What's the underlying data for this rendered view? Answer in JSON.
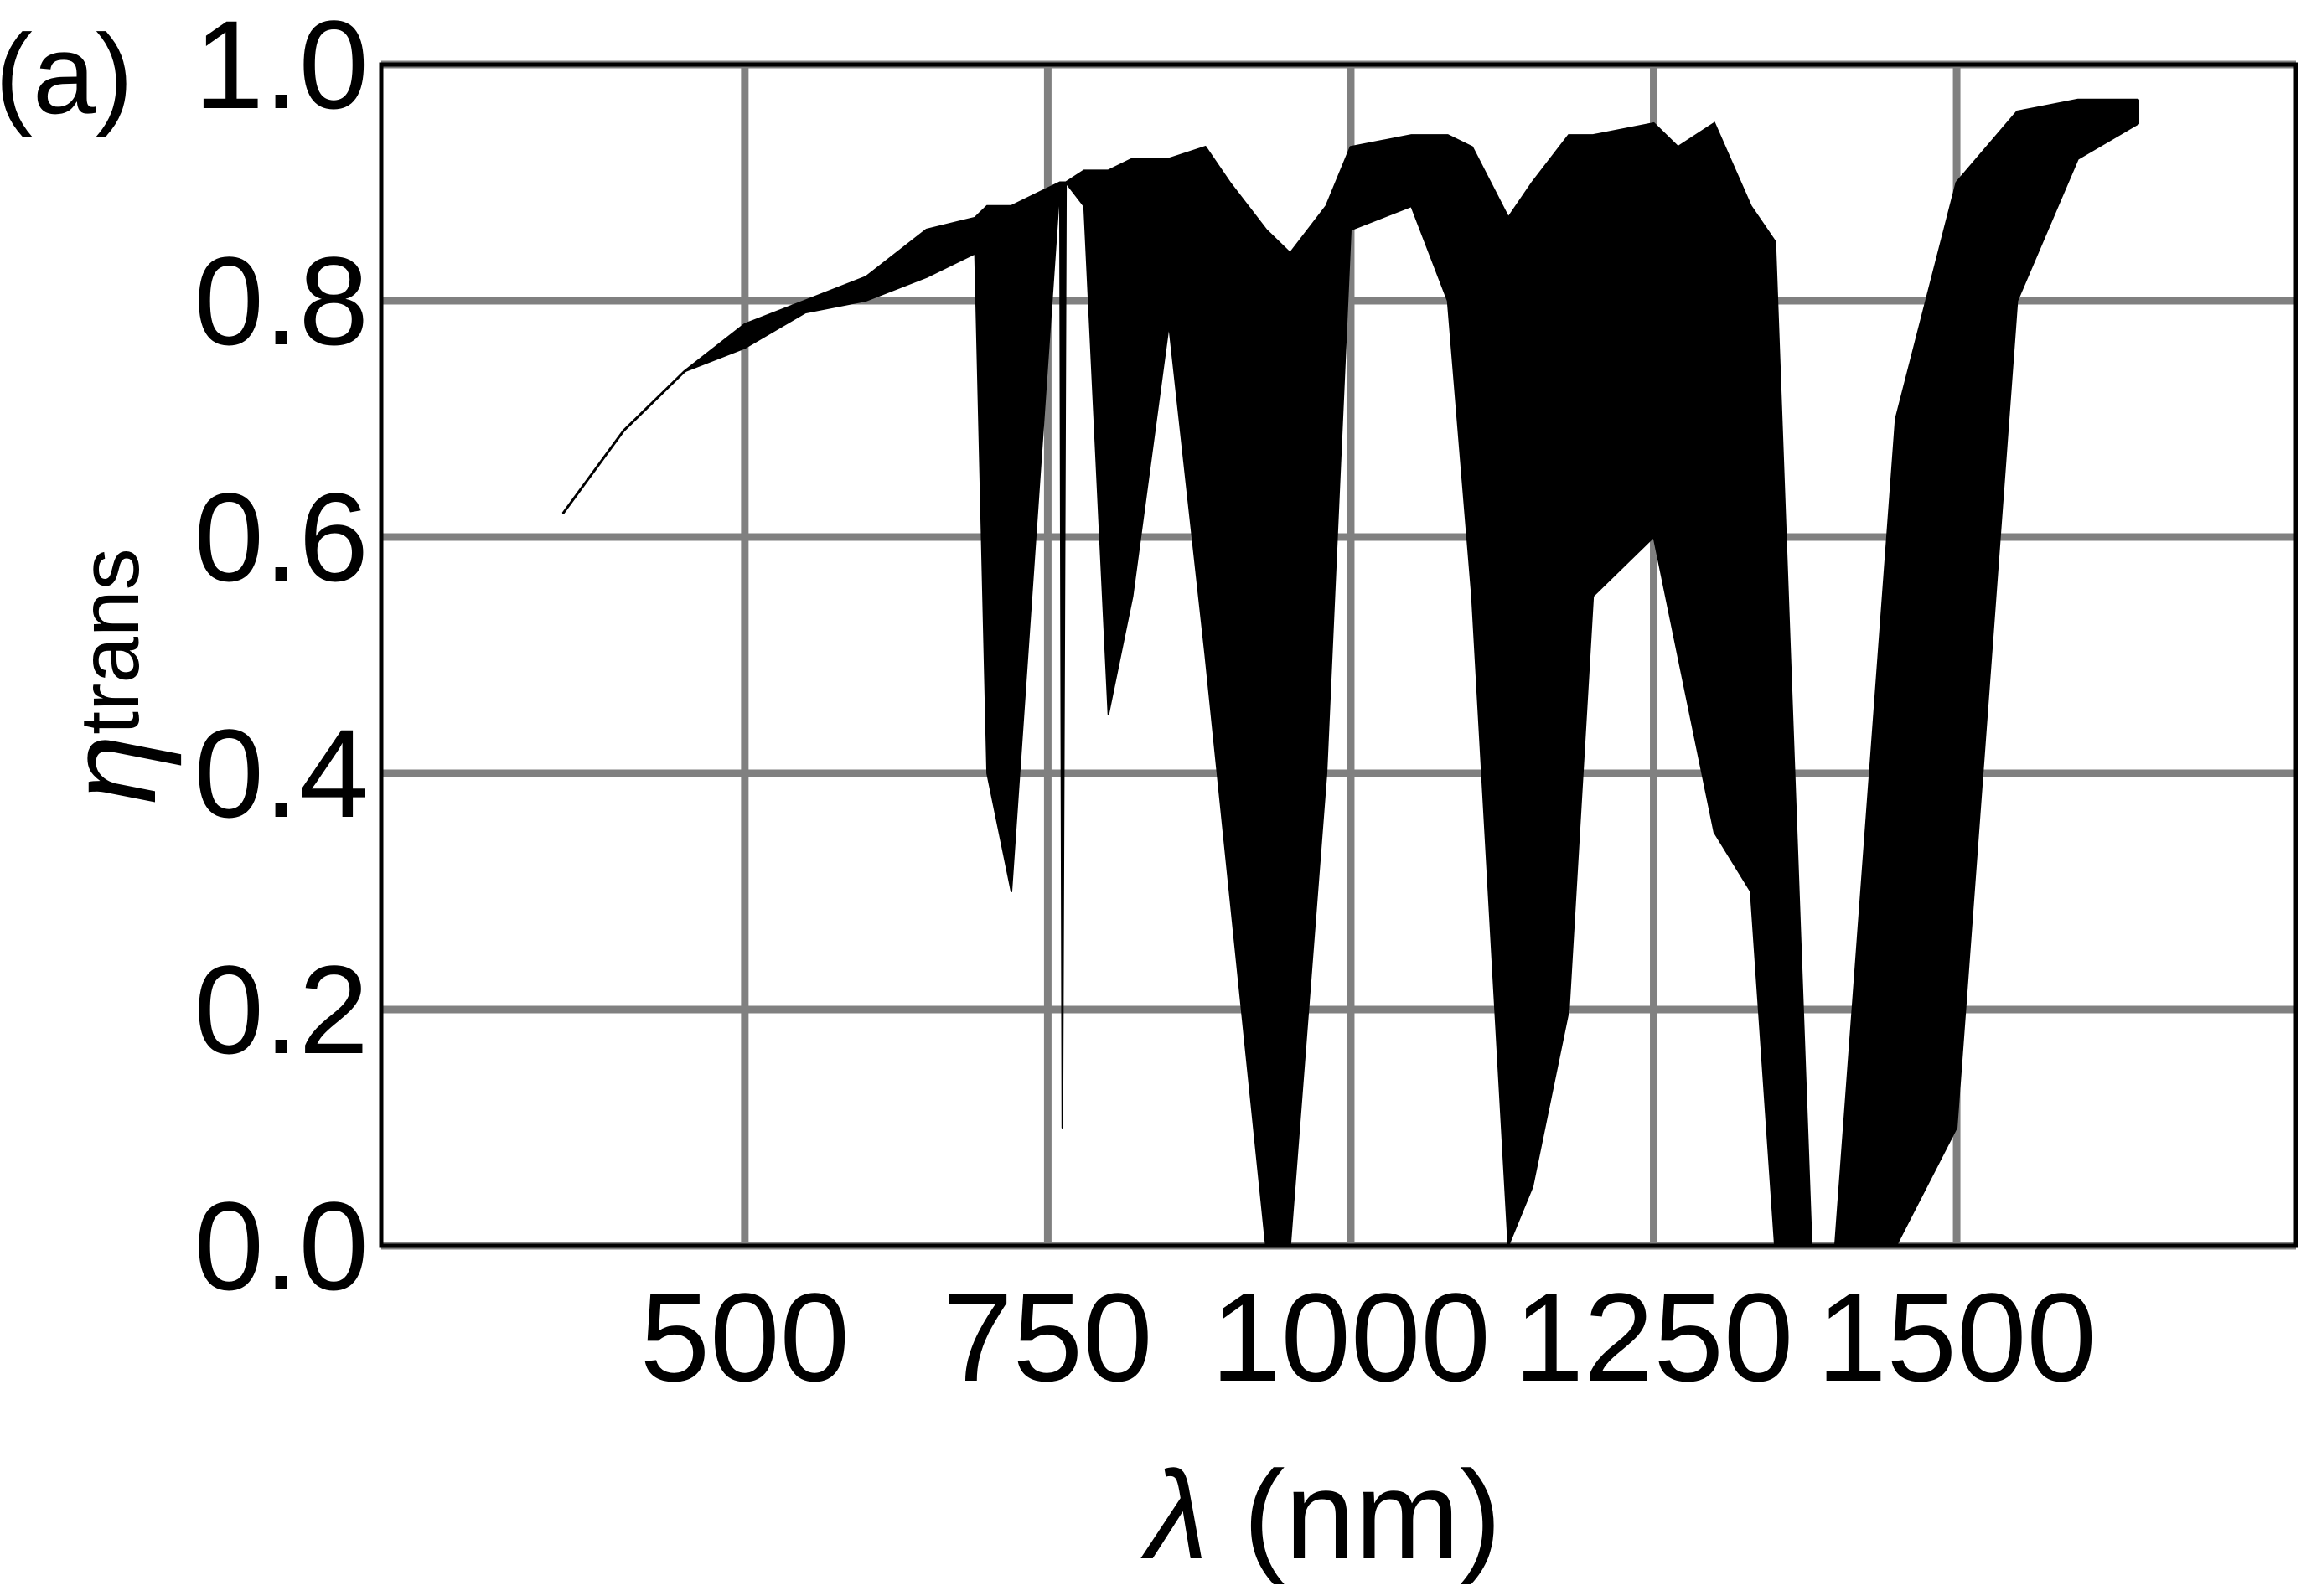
{
  "panel_label": "(a)",
  "chart_data": {
    "type": "line",
    "title": "",
    "xlabel_symbol": "λ",
    "xlabel_unit": "(nm)",
    "ylabel_symbol": "η",
    "ylabel_subscript": "trans",
    "xlim": [
      200,
      1780
    ],
    "ylim": [
      0.0,
      1.0
    ],
    "x_ticks": [
      500,
      750,
      1000,
      1250,
      1500
    ],
    "x_tick_labels": [
      "500",
      "750",
      "1000",
      "1250",
      "1500"
    ],
    "y_ticks": [
      0.0,
      0.2,
      0.4,
      0.6,
      0.8,
      1.0
    ],
    "y_tick_labels": [
      "0.0",
      "0.2",
      "0.4",
      "0.6",
      "0.8",
      "1.0"
    ],
    "grid": true,
    "colors": {
      "line": "#000000",
      "grid": "#808080",
      "frame": "#000000"
    },
    "series": [
      {
        "x": [
          350,
          400,
          450,
          500,
          550,
          600,
          650,
          690,
          700,
          720,
          740,
          760,
          762,
          765,
          780,
          800,
          820,
          850,
          880,
          900,
          930,
          950,
          980,
          1000,
          1050,
          1080,
          1100,
          1130,
          1150,
          1180,
          1200,
          1250,
          1270,
          1300,
          1330,
          1350,
          1380,
          1400,
          1450,
          1500,
          1550,
          1600,
          1650
        ],
        "upper": [
          0.62,
          0.69,
          0.74,
          0.78,
          0.8,
          0.82,
          0.86,
          0.87,
          0.88,
          0.88,
          0.89,
          0.9,
          0.9,
          0.9,
          0.91,
          0.91,
          0.92,
          0.92,
          0.93,
          0.9,
          0.86,
          0.84,
          0.88,
          0.93,
          0.94,
          0.94,
          0.93,
          0.87,
          0.9,
          0.94,
          0.94,
          0.95,
          0.93,
          0.95,
          0.88,
          0.85,
          0.0,
          0.0,
          0.7,
          0.9,
          0.96,
          0.97,
          0.97
        ],
        "lower": [
          0.62,
          0.69,
          0.74,
          0.76,
          0.79,
          0.8,
          0.82,
          0.84,
          0.4,
          0.3,
          0.6,
          0.9,
          0.1,
          0.9,
          0.88,
          0.45,
          0.55,
          0.78,
          0.5,
          0.3,
          0.0,
          0.0,
          0.4,
          0.86,
          0.88,
          0.8,
          0.55,
          0.0,
          0.05,
          0.2,
          0.55,
          0.6,
          0.5,
          0.35,
          0.3,
          0.0,
          0.0,
          0.0,
          0.0,
          0.1,
          0.8,
          0.92,
          0.95
        ]
      }
    ]
  }
}
